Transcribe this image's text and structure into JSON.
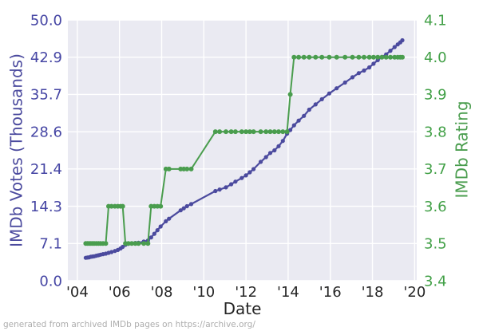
{
  "footer": {
    "text": "generated from archived IMDb pages on https://archive.org/"
  },
  "chart_data": {
    "type": "line",
    "title": "",
    "xlabel": "Date",
    "ylabel_left": "IMDb Votes (Thousands)",
    "ylabel_right": "IMDb Rating",
    "grid": true,
    "legend": "none",
    "plot_bg": "#eaeaf2",
    "grid_color": "#ffffff",
    "xlim": [
      2003.55,
      2020.1
    ],
    "ylim_left": [
      0,
      50
    ],
    "ylim_right": [
      3.4,
      4.1
    ],
    "x_ticks": {
      "labels": [
        "'04",
        "'06",
        "'08",
        "'10",
        "'12",
        "'14",
        "'16",
        "'18",
        "'20"
      ],
      "values": [
        2004,
        2006,
        2008,
        2010,
        2012,
        2014,
        2016,
        2018,
        2020
      ],
      "color": "#262626"
    },
    "y_ticks_left": {
      "labels": [
        "50.0",
        "42.9",
        "35.7",
        "28.6",
        "21.4",
        "14.3",
        "7.1",
        "0.0"
      ],
      "values": [
        50,
        42.857,
        35.714,
        28.571,
        21.429,
        14.286,
        7.143,
        0
      ],
      "color": "#4646a4"
    },
    "y_ticks_right": {
      "labels": [
        "4.1",
        "4.0",
        "3.9",
        "3.8",
        "3.7",
        "3.6",
        "3.5",
        "3.4"
      ],
      "values": [
        4.1,
        4.0,
        3.9,
        3.8,
        3.7,
        3.6,
        3.5,
        3.4
      ],
      "color": "#42a047"
    },
    "colors": {
      "votes": "#4b4a9e",
      "rating": "#4a9d4e"
    },
    "x_shared": [
      2004.4,
      2004.48,
      2004.56,
      2004.64,
      2004.72,
      2004.8,
      2004.9,
      2005.0,
      2005.1,
      2005.22,
      2005.35,
      2005.48,
      2005.62,
      2005.78,
      2005.92,
      2006.05,
      2006.15,
      2006.28,
      2006.42,
      2006.58,
      2006.75,
      2006.9,
      2007.15,
      2007.35,
      2007.5,
      2007.65,
      2007.8,
      2007.95,
      2008.2,
      2008.35,
      2008.9,
      2009.05,
      2009.2,
      2009.4,
      2010.55,
      2010.75,
      2011.05,
      2011.3,
      2011.5,
      2011.8,
      2012.0,
      2012.18,
      2012.36,
      2012.7,
      2012.95,
      2013.15,
      2013.35,
      2013.55,
      2013.75,
      2013.95,
      2014.1,
      2014.28,
      2014.5,
      2014.75,
      2015.0,
      2015.3,
      2015.6,
      2015.95,
      2016.3,
      2016.7,
      2017.05,
      2017.35,
      2017.6,
      2017.85,
      2018.05,
      2018.25,
      2018.45,
      2018.65,
      2018.85,
      2019.05,
      2019.2,
      2019.32,
      2019.42
    ],
    "series": [
      {
        "name": "IMDb Votes (Thousands)",
        "axis": "left",
        "values": [
          4.4,
          4.45,
          4.5,
          4.6,
          4.65,
          4.7,
          4.8,
          4.9,
          5.0,
          5.1,
          5.2,
          5.35,
          5.5,
          5.7,
          5.9,
          6.2,
          6.5,
          6.9,
          7.1,
          7.15,
          7.25,
          7.3,
          7.5,
          7.7,
          8.3,
          9.0,
          9.7,
          10.4,
          11.4,
          11.9,
          13.5,
          13.9,
          14.3,
          14.7,
          17.2,
          17.5,
          17.9,
          18.5,
          19.0,
          19.7,
          20.2,
          20.8,
          21.4,
          22.8,
          23.7,
          24.5,
          25.0,
          25.8,
          26.8,
          28.2,
          28.9,
          29.8,
          30.7,
          31.6,
          32.8,
          33.8,
          34.8,
          35.9,
          36.9,
          38.0,
          39.0,
          39.8,
          40.3,
          40.9,
          41.6,
          42.3,
          42.9,
          43.4,
          44.1,
          44.8,
          45.3,
          45.7,
          46.1
        ]
      },
      {
        "name": "IMDb Rating",
        "axis": "right",
        "values": [
          3.5,
          3.5,
          3.5,
          3.5,
          3.5,
          3.5,
          3.5,
          3.5,
          3.5,
          3.5,
          3.5,
          3.6,
          3.6,
          3.6,
          3.6,
          3.6,
          3.6,
          3.5,
          3.5,
          3.5,
          3.5,
          3.5,
          3.5,
          3.5,
          3.6,
          3.6,
          3.6,
          3.6,
          3.7,
          3.7,
          3.7,
          3.7,
          3.7,
          3.7,
          3.8,
          3.8,
          3.8,
          3.8,
          3.8,
          3.8,
          3.8,
          3.8,
          3.8,
          3.8,
          3.8,
          3.8,
          3.8,
          3.8,
          3.8,
          3.8,
          3.9,
          4.0,
          4.0,
          4.0,
          4.0,
          4.0,
          4.0,
          4.0,
          4.0,
          4.0,
          4.0,
          4.0,
          4.0,
          4.0,
          4.0,
          4.0,
          4.0,
          4.0,
          4.0,
          4.0,
          4.0,
          4.0,
          4.0
        ]
      }
    ]
  }
}
